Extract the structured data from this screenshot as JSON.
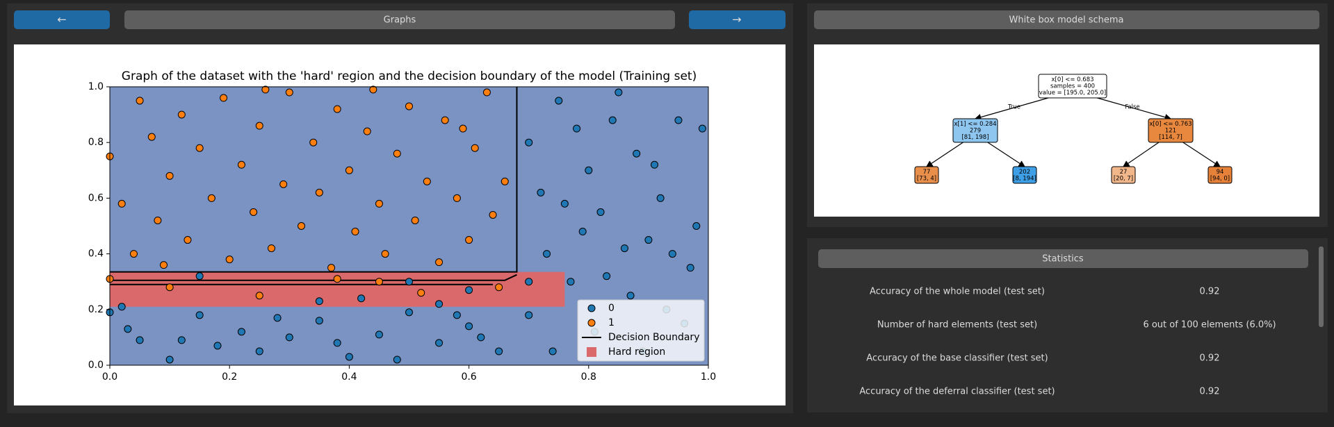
{
  "nav": {
    "prev": "←",
    "title": "Graphs",
    "next": "→"
  },
  "chart_data": {
    "type": "scatter",
    "title": "Graph of the dataset with the 'hard' region and the decision boundary of the model (Training set)",
    "xlim": [
      0,
      1
    ],
    "ylim": [
      0,
      1
    ],
    "xticks": [
      {
        "value": 0,
        "label": "0.0"
      },
      0.2,
      0.4,
      0.6,
      0.8,
      {
        "value": 1,
        "label": "1.0"
      }
    ],
    "yticks": [
      {
        "value": 0,
        "label": "0.0"
      },
      0.2,
      0.4,
      0.6,
      0.8,
      {
        "value": 1,
        "label": "1.0"
      }
    ],
    "background": "#7b93c3",
    "legend": "lower right",
    "series": [
      {
        "name": "0",
        "color": "#1f77b4",
        "x": [
          0.7,
          0.72,
          0.75,
          0.78,
          0.8,
          0.82,
          0.85,
          0.88,
          0.9,
          0.92,
          0.95,
          0.97,
          0.99,
          0.73,
          0.77,
          0.83,
          0.87,
          0.93,
          0.96,
          0.81,
          0.74,
          0.86,
          0.91,
          0.98,
          0.7,
          0.76,
          0.84,
          0.94,
          0.79,
          0.89,
          0.0,
          0.03,
          0.05,
          0.1,
          0.15,
          0.18,
          0.22,
          0.25,
          0.3,
          0.35,
          0.4,
          0.45,
          0.5,
          0.55,
          0.6,
          0.65,
          0.12,
          0.28,
          0.48,
          0.58,
          0.38,
          0.62,
          0.15,
          0.35,
          0.42,
          0.5,
          0.6,
          0.7,
          0.02,
          0.55
        ],
        "values": [
          0.8,
          0.62,
          0.95,
          0.85,
          0.7,
          0.55,
          0.98,
          0.76,
          0.45,
          0.6,
          0.88,
          0.35,
          0.85,
          0.4,
          0.3,
          0.32,
          0.25,
          0.2,
          0.15,
          0.12,
          0.05,
          0.42,
          0.72,
          0.5,
          0.18,
          0.58,
          0.88,
          0.4,
          0.48,
          0.05,
          0.19,
          0.13,
          0.09,
          0.02,
          0.18,
          0.07,
          0.12,
          0.05,
          0.1,
          0.16,
          0.03,
          0.11,
          0.19,
          0.08,
          0.14,
          0.05,
          0.09,
          0.17,
          0.02,
          0.18,
          0.08,
          0.1,
          0.32,
          0.23,
          0.24,
          0.3,
          0.27,
          0.3,
          0.21,
          0.22
        ]
      },
      {
        "name": "1",
        "color": "#ff7f0e",
        "x": [
          0.0,
          0.02,
          0.05,
          0.07,
          0.08,
          0.1,
          0.12,
          0.13,
          0.15,
          0.17,
          0.19,
          0.2,
          0.22,
          0.24,
          0.25,
          0.27,
          0.29,
          0.3,
          0.32,
          0.34,
          0.35,
          0.37,
          0.38,
          0.4,
          0.41,
          0.43,
          0.45,
          0.46,
          0.48,
          0.5,
          0.51,
          0.53,
          0.55,
          0.56,
          0.58,
          0.6,
          0.61,
          0.63,
          0.64,
          0.66,
          0.04,
          0.26,
          0.44,
          0.59,
          0.09,
          0.0,
          0.1,
          0.25,
          0.38,
          0.45,
          0.52,
          0.65
        ],
        "values": [
          0.75,
          0.58,
          0.95,
          0.82,
          0.52,
          0.68,
          0.9,
          0.45,
          0.78,
          0.6,
          0.96,
          0.38,
          0.72,
          0.55,
          0.86,
          0.42,
          0.65,
          0.98,
          0.5,
          0.8,
          0.62,
          0.35,
          0.92,
          0.7,
          0.48,
          0.84,
          0.58,
          0.4,
          0.76,
          0.93,
          0.52,
          0.66,
          0.37,
          0.88,
          0.6,
          0.45,
          0.78,
          0.98,
          0.54,
          0.66,
          0.4,
          0.99,
          0.99,
          0.85,
          0.36,
          0.31,
          0.28,
          0.25,
          0.31,
          0.3,
          0.26,
          0.28
        ]
      }
    ],
    "boundary": {
      "name": "Decision Boundary",
      "color": "#000000",
      "x": [
        0,
        0.68,
        0.68,
        null,
        0,
        0.66,
        0.68,
        null,
        0,
        0.64
      ],
      "values": [
        0.335,
        0.335,
        1.0,
        null,
        0.305,
        0.305,
        0.325,
        null,
        0.29,
        0.29
      ]
    },
    "hard_region": {
      "name": "Hard region",
      "color": "#d9696b",
      "x": [
        0,
        0.76
      ],
      "values": [
        0.21,
        0.335
      ]
    }
  },
  "tree": {
    "title": "White box model schema",
    "edge_labels": [
      "True",
      "False"
    ],
    "nodes": [
      {
        "lines": [
          "x[0] <= 0.683",
          "samples = 400",
          "value = [195.0, 205.0]"
        ],
        "color": "#ffffff"
      },
      {
        "lines": [
          "x[1] <= 0.284",
          "279",
          "[81, 198]"
        ],
        "color": "#8ec6f0"
      },
      {
        "lines": [
          "x[0] <= 0.763",
          "121",
          "[114, 7]"
        ],
        "color": "#e8883f"
      },
      {
        "lines": [
          "77",
          "[73, 4]"
        ],
        "color": "#e88f4b"
      },
      {
        "lines": [
          "202",
          "[8, 194]"
        ],
        "color": "#3e9fe6"
      },
      {
        "lines": [
          "27",
          "[20, 7]"
        ],
        "color": "#f2b68b"
      },
      {
        "lines": [
          "94",
          "[94, 0]"
        ],
        "color": "#e58139"
      }
    ]
  },
  "stats": {
    "title": "Statistics",
    "rows": [
      [
        "Accuracy of the whole model (test set)",
        "0.92"
      ],
      [
        "Number of hard elements (test set)",
        "6 out of 100 elements (6.0%)"
      ],
      [
        "Accuracy of the base classifier (test set)",
        "0.92"
      ],
      [
        "Accuracy of the deferral classifier (test set)",
        "0.92"
      ]
    ]
  }
}
